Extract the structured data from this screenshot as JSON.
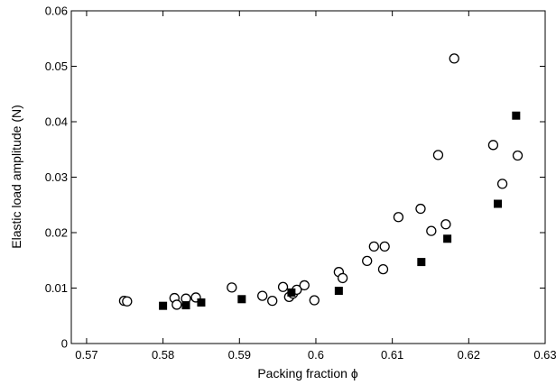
{
  "chart_data": {
    "type": "scatter",
    "title": "",
    "xlabel": "Packing fraction ϕ",
    "ylabel": "Elastic load  amplitude (N)",
    "xlim": [
      0.568,
      0.63
    ],
    "ylim": [
      0,
      0.06
    ],
    "x_ticks": [
      0.57,
      0.58,
      0.59,
      0.6,
      0.61,
      0.62,
      0.63
    ],
    "x_tick_labels": [
      "0.57",
      "0.58",
      "0.59",
      "0.6",
      "0.61",
      "0.62",
      "0.63"
    ],
    "y_ticks": [
      0,
      0.01,
      0.02,
      0.03,
      0.04,
      0.05,
      0.06
    ],
    "y_tick_labels": [
      "0",
      "0.01",
      "0.02",
      "0.03",
      "0.04",
      "0.05",
      "0.06"
    ],
    "grid": false,
    "legend": "none",
    "series": [
      {
        "marker": "open-circle",
        "color": "#000000",
        "points": [
          [
            0.5749,
            0.0077
          ],
          [
            0.5753,
            0.0076
          ],
          [
            0.5815,
            0.0082
          ],
          [
            0.5818,
            0.007
          ],
          [
            0.583,
            0.0081
          ],
          [
            0.5843,
            0.0083
          ],
          [
            0.589,
            0.0101
          ],
          [
            0.593,
            0.0086
          ],
          [
            0.5943,
            0.0077
          ],
          [
            0.5957,
            0.0102
          ],
          [
            0.5965,
            0.0084
          ],
          [
            0.597,
            0.009
          ],
          [
            0.5975,
            0.0097
          ],
          [
            0.5985,
            0.0105
          ],
          [
            0.5998,
            0.0078
          ],
          [
            0.603,
            0.0129
          ],
          [
            0.6035,
            0.0118
          ],
          [
            0.6067,
            0.0149
          ],
          [
            0.6076,
            0.0175
          ],
          [
            0.609,
            0.0175
          ],
          [
            0.6088,
            0.0134
          ],
          [
            0.6108,
            0.0228
          ],
          [
            0.6137,
            0.0243
          ],
          [
            0.6151,
            0.0203
          ],
          [
            0.616,
            0.034
          ],
          [
            0.617,
            0.0215
          ],
          [
            0.6181,
            0.0514
          ],
          [
            0.6232,
            0.0358
          ],
          [
            0.6244,
            0.0288
          ],
          [
            0.6264,
            0.0339
          ]
        ]
      },
      {
        "marker": "filled-square",
        "color": "#000000",
        "points": [
          [
            0.58,
            0.0068
          ],
          [
            0.583,
            0.0069
          ],
          [
            0.585,
            0.0074
          ],
          [
            0.5903,
            0.008
          ],
          [
            0.5968,
            0.0092
          ],
          [
            0.603,
            0.0095
          ],
          [
            0.6138,
            0.0147
          ],
          [
            0.6172,
            0.0189
          ],
          [
            0.6238,
            0.0252
          ],
          [
            0.6262,
            0.0411
          ]
        ]
      }
    ]
  }
}
